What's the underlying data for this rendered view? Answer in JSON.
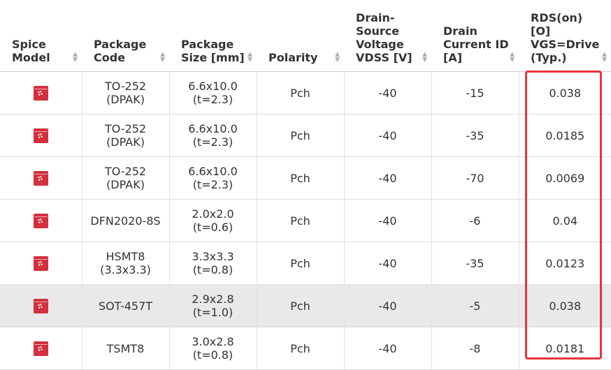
{
  "headers": {
    "spice_model": [
      "Spice",
      "Model"
    ],
    "package_code": [
      "Package",
      "Code"
    ],
    "package_size": [
      "Package",
      "Size [mm]"
    ],
    "polarity": [
      "Polarity"
    ],
    "vdss": [
      "Drain-",
      "Source",
      "Voltage",
      "VDSS [V]"
    ],
    "id": [
      "Drain",
      "Current ID",
      "[A]"
    ],
    "rds": [
      "RDS(on)",
      "[O]",
      "VGS=Drive",
      "(Typ.)"
    ]
  },
  "sort_icon": "sort-arrows-icon",
  "spice_icon": "spice-model-download-icon",
  "highlight_color": "#e8343a",
  "rows": [
    {
      "code": [
        "TO-252",
        "(DPAK)"
      ],
      "size": [
        "6.6x10.0",
        "(t=2.3)"
      ],
      "polarity": "Pch",
      "vdss": "-40",
      "id": "-15",
      "rds": "0.038"
    },
    {
      "code": [
        "TO-252",
        "(DPAK)"
      ],
      "size": [
        "6.6x10.0",
        "(t=2.3)"
      ],
      "polarity": "Pch",
      "vdss": "-40",
      "id": "-35",
      "rds": "0.0185"
    },
    {
      "code": [
        "TO-252",
        "(DPAK)"
      ],
      "size": [
        "6.6x10.0",
        "(t=2.3)"
      ],
      "polarity": "Pch",
      "vdss": "-40",
      "id": "-70",
      "rds": "0.0069"
    },
    {
      "code": [
        "DFN2020-8S"
      ],
      "size": [
        "2.0x2.0",
        "(t=0.6)"
      ],
      "polarity": "Pch",
      "vdss": "-40",
      "id": "-6",
      "rds": "0.04"
    },
    {
      "code": [
        "HSMT8",
        "(3.3x3.3)"
      ],
      "size": [
        "3.3x3.3",
        "(t=0.8)"
      ],
      "polarity": "Pch",
      "vdss": "-40",
      "id": "-35",
      "rds": "0.0123"
    },
    {
      "code": [
        "SOT-457T"
      ],
      "size": [
        "2.9x2.8",
        "(t=1.0)"
      ],
      "polarity": "Pch",
      "vdss": "-40",
      "id": "-5",
      "rds": "0.038"
    },
    {
      "code": [
        "TSMT8"
      ],
      "size": [
        "3.0x2.8",
        "(t=0.8)"
      ],
      "polarity": "Pch",
      "vdss": "-40",
      "id": "-8",
      "rds": "0.0181"
    }
  ]
}
